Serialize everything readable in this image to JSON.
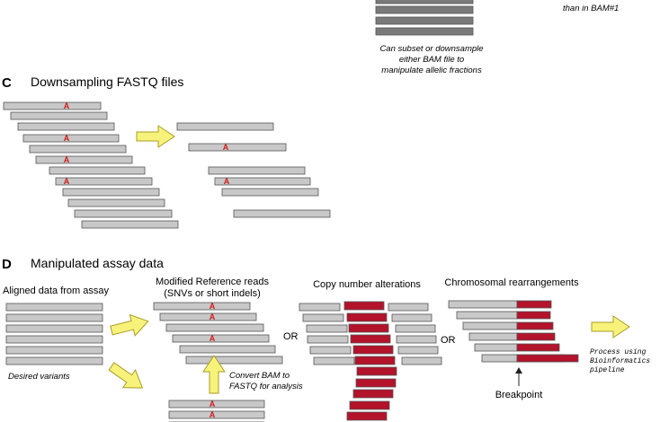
{
  "top_fragment": {
    "right_text": "than in BAM#1",
    "caption_lines": [
      "Can subset or downsample",
      "either BAM file to",
      "manipulate allelic fractions"
    ]
  },
  "panel_c": {
    "letter": "C",
    "title": "Downsampling FASTQ files"
  },
  "panel_d": {
    "letter": "D",
    "title": "Manipulated assay data",
    "aligned_label": "Aligned data from assay",
    "desired_label": "Desired variants",
    "modified_label_lines": [
      "Modified Reference reads",
      "(SNVs or short indels)"
    ],
    "convert_label_lines": [
      "Convert BAM to",
      "FASTQ for analysis"
    ],
    "copy_number_label": "Copy number alterations",
    "rearrangement_label": "Chromosomal rearrangements",
    "breakpoint_label": "Breakpoint",
    "or_label": "OR",
    "process_label_lines": [
      "Process using",
      "Bioinformatics",
      "pipeline"
    ]
  },
  "variant_letter": "A",
  "colors": {
    "read_fill": "#c8c8c8",
    "read_stroke": "#555555",
    "dark_read_fill": "#7a7a7a",
    "variant_red": "#d01c1c",
    "cnv_red": "#b3132b",
    "arrow_fill": "#f7f27a",
    "arrow_stroke": "#a89d26"
  }
}
